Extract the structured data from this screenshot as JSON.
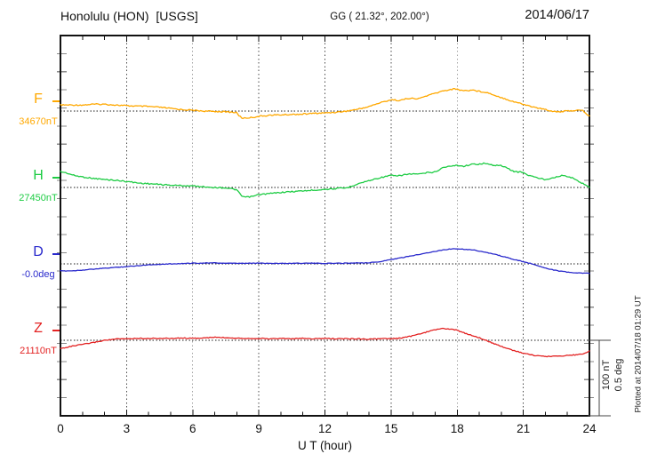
{
  "header": {
    "station": "Honolulu (HON)  [USGS]",
    "coords": "GG ( 21.32°, 202.00°)",
    "date": "2014/06/17"
  },
  "xaxis": {
    "label": "U T (hour)",
    "tick_hours": [
      0,
      3,
      6,
      9,
      12,
      15,
      18,
      21,
      24
    ],
    "minor_tick_every_hours": 1,
    "range": [
      0,
      24
    ]
  },
  "scalebar": {
    "line1": "100 nT",
    "line2": "0.5 deg"
  },
  "plotted_at": "Plotted at 2014/07/18 01:29 UT",
  "colors": {
    "F": "#FFA800",
    "H": "#1ECC44",
    "D": "#2929CC",
    "Z": "#E32222",
    "frame": "#111111",
    "grid": "#4a4a4a",
    "baseline_dots": "#1a1a1a",
    "side_ticks": "#8a8a8a",
    "scalebar": "#444444"
  },
  "chart_data": {
    "type": "line",
    "xlabel": "U T (hour)",
    "x_range": [
      0,
      24
    ],
    "gridline_hours": [
      3,
      6,
      9,
      12,
      15,
      18,
      21
    ],
    "scale_per_division": {
      "nT": 100,
      "deg": 0.5
    },
    "legend_position": "left",
    "grid": "dotted",
    "series": [
      {
        "name": "F",
        "axis_label": "34670nT",
        "base_value": 34670,
        "unit": "nT",
        "color": "#FFA800",
        "rel": [
          [
            0,
            8
          ],
          [
            0.5,
            8
          ],
          [
            1,
            8
          ],
          [
            1.5,
            9
          ],
          [
            2,
            9
          ],
          [
            2.5,
            8
          ],
          [
            3,
            7
          ],
          [
            3.5,
            6.5
          ],
          [
            4,
            6
          ],
          [
            4.5,
            5
          ],
          [
            5,
            3.5
          ],
          [
            5.5,
            2
          ],
          [
            6,
            1
          ],
          [
            6.5,
            0
          ],
          [
            7,
            -0.5
          ],
          [
            7.5,
            -1
          ],
          [
            8,
            -2
          ],
          [
            8.1,
            -6
          ],
          [
            8.25,
            -9.5
          ],
          [
            8.5,
            -9
          ],
          [
            8.8,
            -8
          ],
          [
            9,
            -7
          ],
          [
            9.5,
            -5.5
          ],
          [
            10,
            -5
          ],
          [
            10.5,
            -4.5
          ],
          [
            11,
            -4
          ],
          [
            11.5,
            -3
          ],
          [
            12,
            -2.5
          ],
          [
            12.5,
            -1.5
          ],
          [
            13,
            0
          ],
          [
            13.5,
            2.5
          ],
          [
            14,
            6
          ],
          [
            14.5,
            11
          ],
          [
            15,
            15
          ],
          [
            15.4,
            14
          ],
          [
            15.8,
            17
          ],
          [
            16.2,
            16
          ],
          [
            16.6,
            20
          ],
          [
            17,
            23.5
          ],
          [
            17.4,
            27
          ],
          [
            17.9,
            29.5
          ],
          [
            18.1,
            28
          ],
          [
            18.4,
            27
          ],
          [
            18.7,
            28
          ],
          [
            19,
            26
          ],
          [
            19.3,
            25
          ],
          [
            19.6,
            22
          ],
          [
            20,
            18
          ],
          [
            20.5,
            13
          ],
          [
            21,
            9
          ],
          [
            21.5,
            5
          ],
          [
            22,
            2
          ],
          [
            22.3,
            0
          ],
          [
            22.6,
            -1
          ],
          [
            23,
            0
          ],
          [
            23.4,
            1
          ],
          [
            23.7,
            0.5
          ],
          [
            24,
            -7
          ]
        ]
      },
      {
        "name": "H",
        "axis_label": "27450nT",
        "base_value": 27450,
        "unit": "nT",
        "color": "#1ECC44",
        "rel": [
          [
            0,
            21
          ],
          [
            0.3,
            19
          ],
          [
            0.6,
            16
          ],
          [
            1,
            14
          ],
          [
            1.5,
            12
          ],
          [
            2,
            10.5
          ],
          [
            2.5,
            9.5
          ],
          [
            3,
            8
          ],
          [
            3.5,
            6
          ],
          [
            4,
            5
          ],
          [
            4.5,
            4
          ],
          [
            5,
            3
          ],
          [
            5.5,
            2.5
          ],
          [
            6,
            2
          ],
          [
            6.5,
            1
          ],
          [
            7,
            0
          ],
          [
            7.5,
            -0.5
          ],
          [
            8,
            -3
          ],
          [
            8.2,
            -11
          ],
          [
            8.4,
            -13
          ],
          [
            8.7,
            -12
          ],
          [
            9,
            -9.5
          ],
          [
            9.5,
            -8
          ],
          [
            10,
            -6.5
          ],
          [
            10.5,
            -5.5
          ],
          [
            11,
            -4.5
          ],
          [
            11.5,
            -3.5
          ],
          [
            12,
            -2.5
          ],
          [
            12.5,
            -1.5
          ],
          [
            13,
            -0.5
          ],
          [
            13.5,
            5
          ],
          [
            14,
            9
          ],
          [
            14.5,
            13
          ],
          [
            15,
            16
          ],
          [
            15.3,
            15
          ],
          [
            15.6,
            17
          ],
          [
            16,
            18
          ],
          [
            16.3,
            17.5
          ],
          [
            16.6,
            19.5
          ],
          [
            17,
            20.5
          ],
          [
            17.4,
            27
          ],
          [
            17.7,
            28
          ],
          [
            18,
            29.5
          ],
          [
            18.3,
            28
          ],
          [
            18.6,
            30.5
          ],
          [
            19,
            31
          ],
          [
            19.2,
            32
          ],
          [
            19.5,
            30
          ],
          [
            20,
            29
          ],
          [
            20.3,
            25
          ],
          [
            20.6,
            21
          ],
          [
            21,
            20
          ],
          [
            21.2,
            16.5
          ],
          [
            21.6,
            13
          ],
          [
            22,
            10.5
          ],
          [
            22.4,
            13.5
          ],
          [
            22.8,
            16
          ],
          [
            23.2,
            13
          ],
          [
            23.5,
            8
          ],
          [
            23.8,
            4
          ],
          [
            24,
            0.5
          ]
        ]
      },
      {
        "name": "D",
        "axis_label": "-0.0deg",
        "base_value": -0.0,
        "unit": "deg",
        "color": "#2929CC",
        "rel": [
          [
            0,
            -0.047
          ],
          [
            0.5,
            -0.046
          ],
          [
            1,
            -0.041
          ],
          [
            1.5,
            -0.035
          ],
          [
            2,
            -0.029
          ],
          [
            2.5,
            -0.023
          ],
          [
            3,
            -0.018
          ],
          [
            3.5,
            -0.012
          ],
          [
            4,
            -0.006
          ],
          [
            4.5,
            -0.003
          ],
          [
            5,
            0
          ],
          [
            5.5,
            0.002
          ],
          [
            6,
            0.005
          ],
          [
            7,
            0.006
          ],
          [
            8,
            0.003
          ],
          [
            9,
            0.005
          ],
          [
            10,
            0.003
          ],
          [
            11,
            0.005
          ],
          [
            12,
            0.003
          ],
          [
            13,
            0.005
          ],
          [
            14,
            0.008
          ],
          [
            14.5,
            0.014
          ],
          [
            15,
            0.029
          ],
          [
            15.5,
            0.041
          ],
          [
            16,
            0.055
          ],
          [
            16.5,
            0.07
          ],
          [
            17,
            0.082
          ],
          [
            17.4,
            0.094
          ],
          [
            17.8,
            0.1
          ],
          [
            18.1,
            0.1
          ],
          [
            18.4,
            0.096
          ],
          [
            18.7,
            0.093
          ],
          [
            19,
            0.085
          ],
          [
            19.5,
            0.07
          ],
          [
            20,
            0.052
          ],
          [
            20.5,
            0.032
          ],
          [
            21,
            0.014
          ],
          [
            21.4,
            0
          ],
          [
            21.8,
            -0.018
          ],
          [
            22.2,
            -0.035
          ],
          [
            22.6,
            -0.047
          ],
          [
            23,
            -0.055
          ],
          [
            23.5,
            -0.061
          ],
          [
            24,
            -0.062
          ]
        ]
      },
      {
        "name": "Z",
        "axis_label": "21110nT",
        "base_value": 21110,
        "unit": "nT",
        "color": "#E32222",
        "rel": [
          [
            0,
            -11
          ],
          [
            0.5,
            -8
          ],
          [
            1,
            -5.5
          ],
          [
            1.5,
            -3
          ],
          [
            2,
            0
          ],
          [
            2.5,
            1.5
          ],
          [
            3,
            2
          ],
          [
            3.5,
            2.5
          ],
          [
            4,
            2.5
          ],
          [
            4.5,
            2.5
          ],
          [
            5,
            2.5
          ],
          [
            5.5,
            3
          ],
          [
            6,
            2.5
          ],
          [
            6.5,
            3
          ],
          [
            7,
            4
          ],
          [
            7.5,
            3.5
          ],
          [
            8,
            3
          ],
          [
            8.5,
            2.5
          ],
          [
            9,
            2.5
          ],
          [
            9.5,
            2
          ],
          [
            10,
            2.5
          ],
          [
            10.5,
            2
          ],
          [
            11,
            2.5
          ],
          [
            11.5,
            2
          ],
          [
            12,
            2.5
          ],
          [
            12.5,
            2
          ],
          [
            13,
            2
          ],
          [
            13.5,
            2
          ],
          [
            14,
            1.5
          ],
          [
            14.5,
            2
          ],
          [
            15,
            2
          ],
          [
            15.5,
            3
          ],
          [
            16,
            6
          ],
          [
            16.5,
            10
          ],
          [
            17,
            14
          ],
          [
            17.3,
            15.5
          ],
          [
            17.6,
            15
          ],
          [
            17.9,
            14
          ],
          [
            18.1,
            12
          ],
          [
            18.5,
            8
          ],
          [
            19,
            3.5
          ],
          [
            19.3,
            0
          ],
          [
            19.7,
            -5
          ],
          [
            20,
            -8
          ],
          [
            20.5,
            -13
          ],
          [
            21,
            -17
          ],
          [
            21.5,
            -20
          ],
          [
            22,
            -21.5
          ],
          [
            22.5,
            -21
          ],
          [
            23,
            -20
          ],
          [
            23.5,
            -19
          ],
          [
            23.8,
            -17
          ],
          [
            24,
            -14.5
          ]
        ]
      }
    ]
  }
}
